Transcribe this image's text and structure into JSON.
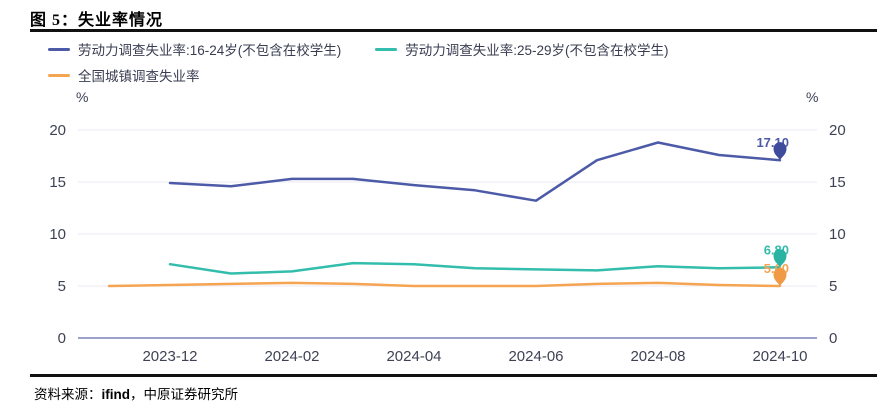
{
  "header": {
    "title": "图 5：失业率情况"
  },
  "legend": {
    "items": [
      {
        "label": "劳动力调查失业率:16-24岁(不包含在校学生)",
        "color": "#4c5aa7"
      },
      {
        "label": "劳动力调查失业率:25-29岁(不包含在校学生)",
        "color": "#33bdac"
      },
      {
        "label": "全国城镇调查失业率",
        "color": "#f5a452"
      }
    ]
  },
  "footer": {
    "source_prefix": "资料来源：",
    "source_vendor": "ifind",
    "source_suffix": "，中原证券研究所"
  },
  "chart_data": {
    "type": "line",
    "title": "失业率情况",
    "unit_label": "%",
    "categories": [
      "2023-11",
      "2023-12",
      "2024-01",
      "2024-02",
      "2024-03",
      "2024-04",
      "2024-05",
      "2024-06",
      "2024-07",
      "2024-08",
      "2024-09",
      "2024-10"
    ],
    "x_tick_labels": [
      "2023-12",
      "2024-02",
      "2024-04",
      "2024-06",
      "2024-08",
      "2024-10"
    ],
    "x_tick_indices": [
      1,
      3,
      5,
      7,
      9,
      11
    ],
    "y_ticks": [
      0,
      5,
      10,
      15,
      20
    ],
    "ylim": [
      0,
      21.5
    ],
    "grid": true,
    "legend_position": "top",
    "dual_y_axis": true,
    "series": [
      {
        "name": "劳动力调查失业率:16-24岁(不包含在校学生)",
        "color": "#4c5aa7",
        "marker_color": "#3f4c9e",
        "end_label": "17.10",
        "values": [
          null,
          14.9,
          14.6,
          15.3,
          15.3,
          14.7,
          14.2,
          13.2,
          17.1,
          18.8,
          17.6,
          17.1
        ]
      },
      {
        "name": "劳动力调查失业率:25-29岁(不包含在校学生)",
        "color": "#33bdac",
        "marker_color": "#2bb3a2",
        "end_label": "6.80",
        "values": [
          null,
          7.1,
          6.2,
          6.4,
          7.2,
          7.1,
          6.7,
          6.6,
          6.5,
          6.9,
          6.7,
          6.8
        ]
      },
      {
        "name": "全国城镇调查失业率",
        "color": "#f5a452",
        "marker_color": "#f09a45",
        "end_label": "5.00",
        "values": [
          5.0,
          5.1,
          5.2,
          5.3,
          5.2,
          5.0,
          5.0,
          5.0,
          5.2,
          5.3,
          5.1,
          5.0
        ]
      }
    ],
    "colors": {
      "grid_line": "#ededf5",
      "axis_base_line": "#9aa3c7",
      "tick_text": "#3e4254"
    }
  }
}
